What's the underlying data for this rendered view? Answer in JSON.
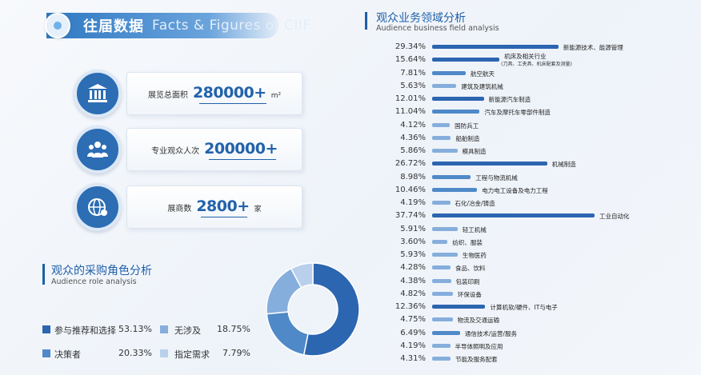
{
  "header": {
    "title": "往届数据",
    "subtitle": "Facts & Figures of CIIF"
  },
  "stats": [
    {
      "icon": "building-icon",
      "label": "展览总面积",
      "value": "280000+",
      "unit": "m²"
    },
    {
      "icon": "people-icon",
      "label": "专业观众人次",
      "value": "200000+",
      "unit": ""
    },
    {
      "icon": "globe-network-icon",
      "label": "展商数",
      "value": "2800+",
      "unit": "家"
    }
  ],
  "role_section": {
    "title": "观众的采购角色分析",
    "subtitle": "Audience role analysis"
  },
  "field_section": {
    "title": "观众业务领域分析",
    "subtitle": "Audience business field analysis"
  },
  "colors": {
    "primary": "#2c65b0",
    "mid": "#4f89c8",
    "light": "#86aedc",
    "pale": "#b9d0ec"
  },
  "chart_data": [
    {
      "type": "pie",
      "title": "观众的采购角色分析",
      "subtitle": "Audience role analysis",
      "categories": [
        "参与推荐和选择",
        "决策者",
        "无涉及",
        "指定需求"
      ],
      "values": [
        53.13,
        20.33,
        18.75,
        7.79
      ],
      "value_labels": [
        "53.13%",
        "20.33%",
        "18.75%",
        "7.79%"
      ],
      "colors": [
        "#2c65b0",
        "#4f89c8",
        "#86aedc",
        "#b9d0ec"
      ],
      "legend": "bottom-left"
    },
    {
      "type": "bar",
      "orientation": "horizontal",
      "title": "观众业务领域分析",
      "subtitle": "Audience business field analysis",
      "categories": [
        "新能源技术、能源管理",
        "机床及相关行业",
        "航空航天",
        "建筑及建筑机械",
        "新能源汽车制造",
        "汽车及摩托车零部件制造",
        "国防兵工",
        "船舶制造",
        "模具制造",
        "机械制造",
        "工程与物流机械",
        "电力电工设备及电力工程",
        "石化/冶金/铸造",
        "工业自动化",
        "轻工机械",
        "纺织、服装",
        "生物医药",
        "食品、饮料",
        "包装印刷",
        "环保设备",
        "计算机软/硬件、IT与电子",
        "物流及交通运输",
        "通信技术/运营/服务",
        "半导体照明及应用",
        "节能及服务配套"
      ],
      "category_notes": [
        "",
        "(刀具、工夹具、机床配套及测量)",
        "",
        "",
        "",
        "",
        "",
        "",
        "",
        "",
        "",
        "",
        "",
        "",
        "",
        "",
        "",
        "",
        "",
        "",
        "",
        "",
        "",
        "",
        ""
      ],
      "values": [
        29.34,
        15.64,
        7.81,
        5.63,
        12.01,
        11.04,
        4.12,
        4.36,
        5.86,
        26.72,
        8.98,
        10.46,
        4.19,
        37.74,
        5.91,
        3.6,
        5.93,
        4.28,
        4.38,
        4.82,
        12.36,
        4.75,
        6.49,
        4.19,
        4.31
      ],
      "value_labels": [
        "29.34%",
        "15.64%",
        "7.81%",
        "5.63%",
        "12.01%",
        "11.04%",
        "4.12%",
        "4.36%",
        "5.86%",
        "26.72%",
        "8.98%",
        "10.46%",
        "4.19%",
        "37.74%",
        "5.91%",
        "3.60%",
        "5.93%",
        "4.28%",
        "4.38%",
        "4.82%",
        "12.36%",
        "4.75%",
        "6.49%",
        "4.19%",
        "4.31%"
      ],
      "xlim": [
        0,
        37.74
      ]
    }
  ]
}
